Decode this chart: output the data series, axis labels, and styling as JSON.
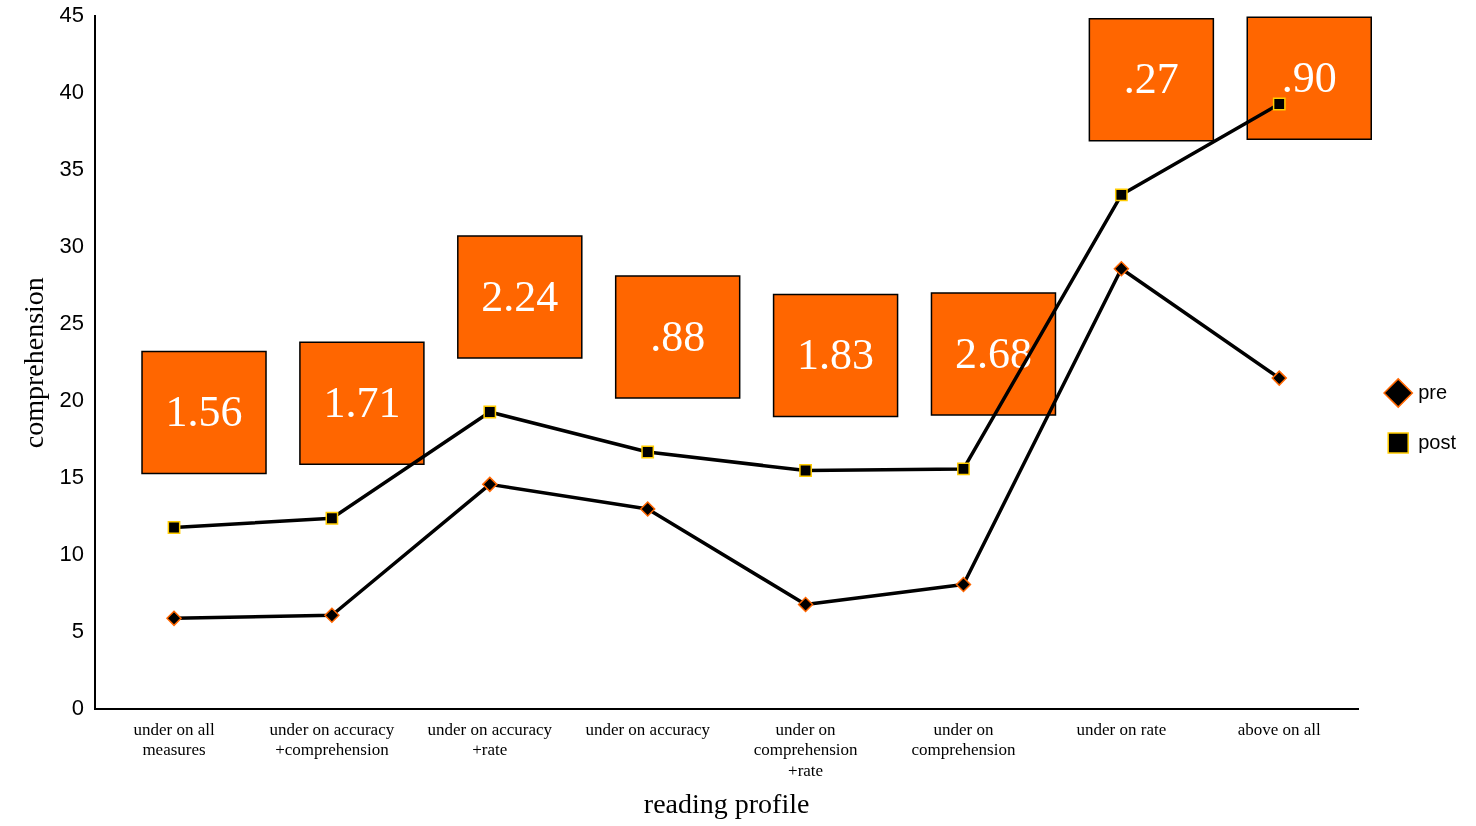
{
  "chart_data": {
    "type": "line",
    "xlabel": "reading profile",
    "ylabel": "comprehension",
    "categories": [
      "under on all measures",
      "under on accuracy +comprehension",
      "under on accuracy +rate",
      "under on accuracy",
      "under on comprehension +rate",
      "under on comprehension",
      "under on rate",
      "above on all"
    ],
    "series": [
      {
        "name": "pre",
        "color": "#000000",
        "marker": "diamond",
        "values": [
          5.9,
          6.1,
          14.6,
          13.0,
          6.8,
          8.1,
          28.6,
          21.5
        ]
      },
      {
        "name": "post",
        "color": "#000000",
        "marker": "square",
        "values": [
          11.8,
          12.4,
          19.3,
          16.7,
          15.5,
          15.6,
          33.4,
          39.3
        ]
      }
    ],
    "ylim": [
      0,
      45
    ],
    "yticks": [
      0,
      5,
      10,
      15,
      20,
      25,
      30,
      35,
      40,
      45
    ],
    "grid": false,
    "legend": "right",
    "annotations": [
      "1.56",
      "1.71",
      "2.24",
      ".88",
      "1.83",
      "2.68",
      ".27",
      ".90"
    ]
  }
}
